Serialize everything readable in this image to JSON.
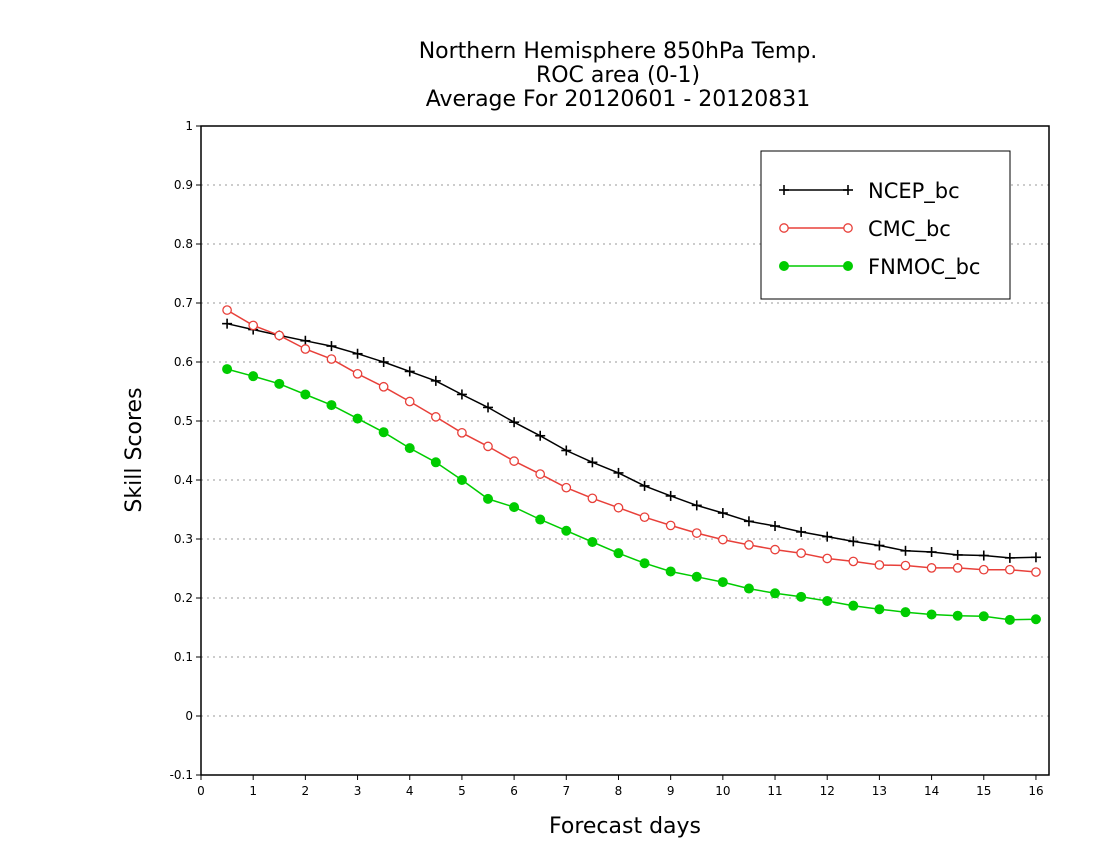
{
  "chart_data": {
    "type": "line",
    "title_lines": [
      "Northern Hemisphere 850hPa Temp.",
      "ROC area (0-1)",
      "Average For 20120601 - 20120831"
    ],
    "xlabel": "Forecast days",
    "ylabel": "Skill Scores",
    "xlim": [
      0,
      16.25
    ],
    "ylim": [
      -0.1,
      1
    ],
    "xticks": [
      0,
      1,
      2,
      3,
      4,
      5,
      6,
      7,
      8,
      9,
      10,
      11,
      12,
      13,
      14,
      15,
      16
    ],
    "yticks": [
      -0.1,
      0,
      0.1,
      0.2,
      0.3,
      0.4,
      0.5,
      0.6,
      0.7,
      0.8,
      0.9,
      1
    ],
    "ytick_labels": [
      "-0.1",
      "0",
      "0.1",
      "0.2",
      "0.3",
      "0.4",
      "0.5",
      "0.6",
      "0.7",
      "0.8",
      "0.9",
      "1"
    ],
    "grid": "horizontal dotted",
    "legend_position": "top-right",
    "x": [
      0.5,
      1,
      1.5,
      2,
      2.5,
      3,
      3.5,
      4,
      4.5,
      5,
      5.5,
      6,
      6.5,
      7,
      7.5,
      8,
      8.5,
      9,
      9.5,
      10,
      10.5,
      11,
      11.5,
      12,
      12.5,
      13,
      13.5,
      14,
      14.5,
      15,
      15.5,
      16
    ],
    "series": [
      {
        "name": "NCEP_bc",
        "color": "#000000",
        "marker": "plus",
        "values": [
          0.665,
          0.655,
          0.645,
          0.636,
          0.627,
          0.614,
          0.6,
          0.584,
          0.568,
          0.545,
          0.523,
          0.498,
          0.475,
          0.45,
          0.43,
          0.412,
          0.39,
          0.373,
          0.357,
          0.344,
          0.33,
          0.322,
          0.312,
          0.304,
          0.296,
          0.289,
          0.28,
          0.278,
          0.273,
          0.272,
          0.268,
          0.269
        ]
      },
      {
        "name": "CMC_bc",
        "color": "#e8403a",
        "marker": "open-circle",
        "values": [
          0.688,
          0.662,
          0.645,
          0.622,
          0.605,
          0.58,
          0.558,
          0.533,
          0.507,
          0.48,
          0.457,
          0.432,
          0.41,
          0.387,
          0.369,
          0.353,
          0.337,
          0.323,
          0.31,
          0.299,
          0.29,
          0.282,
          0.276,
          0.267,
          0.262,
          0.256,
          0.255,
          0.251,
          0.251,
          0.248,
          0.248,
          0.244
        ]
      },
      {
        "name": "FNMOC_bc",
        "color": "#00cc00",
        "marker": "filled-circle",
        "values": [
          0.588,
          0.576,
          0.563,
          0.545,
          0.527,
          0.504,
          0.481,
          0.454,
          0.43,
          0.4,
          0.368,
          0.354,
          0.333,
          0.314,
          0.295,
          0.276,
          0.259,
          0.245,
          0.236,
          0.227,
          0.216,
          0.208,
          0.202,
          0.195,
          0.187,
          0.181,
          0.176,
          0.172,
          0.17,
          0.169,
          0.163,
          0.164
        ]
      }
    ]
  }
}
